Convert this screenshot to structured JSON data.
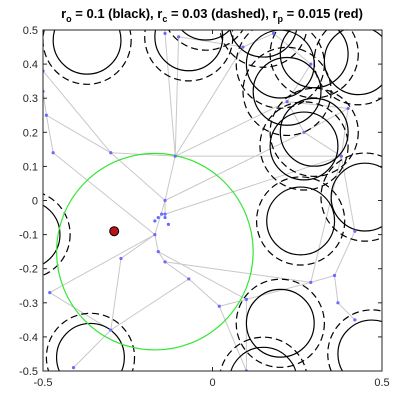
{
  "chart_data": {
    "type": "scatter",
    "title_parts": {
      "r_o_label": "r",
      "r_o_sub": "o",
      "r_o_rest": " = 0.1 (black), ",
      "r_c_label": "r",
      "r_c_sub": "c",
      "r_c_rest": " = 0.03 (dashed), ",
      "r_p_label": "r",
      "r_p_sub": "p",
      "r_p_rest": " = 0.015 (red)"
    },
    "xlim": [
      -0.5,
      0.5
    ],
    "ylim": [
      -0.5,
      0.5
    ],
    "x_ticks": [
      "-0.5",
      "0",
      "0.5"
    ],
    "y_ticks": [
      "0.5",
      "0.4",
      "0.3",
      "0.2",
      "0.1",
      "0",
      "-0.1",
      "-0.2",
      "-0.3",
      "-0.4",
      "-0.5"
    ],
    "grid": false,
    "obstacle_radius": 0.1,
    "clearance_radius": 0.13,
    "robot_radius": 0.015,
    "obstacles": [
      [
        -0.37,
        0.47
      ],
      [
        -0.07,
        0.48
      ],
      [
        0.3,
        0.43
      ],
      [
        0.43,
        0.41
      ],
      [
        0.2,
        0.4
      ],
      [
        0.22,
        0.32
      ],
      [
        0.3,
        0.2
      ],
      [
        0.27,
        0.16
      ],
      [
        -0.02,
        0.57
      ],
      [
        0.15,
        0.52
      ],
      [
        0.45,
        0.01
      ],
      [
        0.26,
        -0.06
      ],
      [
        -0.36,
        -0.46
      ],
      [
        0.2,
        -0.36
      ],
      [
        0.47,
        -0.45
      ],
      [
        0.15,
        -0.53
      ],
      [
        -0.55,
        -0.1
      ]
    ],
    "robot": [
      -0.29,
      -0.09
    ],
    "free_circle": {
      "center": [
        -0.17,
        -0.15
      ],
      "radius": 0.29
    },
    "nodes": [
      [
        -0.5,
        0.38
      ],
      [
        -0.5,
        0.32
      ],
      [
        -0.49,
        0.25
      ],
      [
        -0.15,
        0.61
      ],
      [
        -0.14,
        0.49
      ],
      [
        -0.1,
        0.48
      ],
      [
        0.18,
        0.49
      ],
      [
        0.09,
        0.45
      ],
      [
        0.29,
        0.4
      ],
      [
        0.22,
        0.29
      ],
      [
        0.27,
        0.2
      ],
      [
        0.4,
        0.27
      ],
      [
        0.38,
        0.13
      ],
      [
        0.42,
        -0.09
      ],
      [
        -0.3,
        0.14
      ],
      [
        -0.11,
        0.13
      ],
      [
        -0.17,
        -0.1
      ],
      [
        -0.17,
        -0.06
      ],
      [
        -0.14,
        0.0
      ],
      [
        -0.14,
        -0.04
      ],
      [
        -0.16,
        -0.05
      ],
      [
        -0.15,
        -0.04
      ],
      [
        -0.14,
        -0.05
      ],
      [
        -0.13,
        -0.07
      ],
      [
        -0.27,
        -0.17
      ],
      [
        -0.16,
        -0.15
      ],
      [
        -0.14,
        -0.18
      ],
      [
        -0.07,
        -0.23
      ],
      [
        0.02,
        -0.31
      ],
      [
        0.1,
        -0.29
      ],
      [
        0.29,
        -0.24
      ],
      [
        0.36,
        -0.22
      ],
      [
        0.37,
        -0.3
      ],
      [
        0.42,
        -0.35
      ],
      [
        -0.48,
        -0.27
      ],
      [
        -0.41,
        -0.49
      ],
      [
        -0.3,
        -0.38
      ],
      [
        0.1,
        -0.5
      ],
      [
        -0.47,
        0.14
      ]
    ],
    "edges": [
      [
        0,
        1
      ],
      [
        1,
        2
      ],
      [
        2,
        14
      ],
      [
        14,
        15
      ],
      [
        14,
        18
      ],
      [
        15,
        18
      ],
      [
        15,
        9
      ],
      [
        15,
        7
      ],
      [
        15,
        4
      ],
      [
        15,
        5
      ],
      [
        4,
        3
      ],
      [
        5,
        7
      ],
      [
        7,
        6
      ],
      [
        6,
        8
      ],
      [
        8,
        9
      ],
      [
        9,
        10
      ],
      [
        10,
        11
      ],
      [
        11,
        12
      ],
      [
        12,
        13
      ],
      [
        10,
        12
      ],
      [
        9,
        11
      ],
      [
        18,
        16
      ],
      [
        18,
        19
      ],
      [
        16,
        24
      ],
      [
        16,
        25
      ],
      [
        25,
        26
      ],
      [
        26,
        27
      ],
      [
        27,
        28
      ],
      [
        28,
        29
      ],
      [
        29,
        30
      ],
      [
        30,
        31
      ],
      [
        31,
        32
      ],
      [
        32,
        33
      ],
      [
        13,
        31
      ],
      [
        12,
        30
      ],
      [
        28,
        37
      ],
      [
        29,
        37
      ],
      [
        36,
        35
      ],
      [
        34,
        36
      ],
      [
        24,
        36
      ],
      [
        27,
        36
      ],
      [
        14,
        0
      ],
      [
        15,
        12
      ],
      [
        19,
        12
      ],
      [
        18,
        10
      ],
      [
        26,
        30
      ],
      [
        25,
        29
      ],
      [
        16,
        34
      ],
      [
        2,
        38
      ],
      [
        38,
        16
      ]
    ]
  }
}
